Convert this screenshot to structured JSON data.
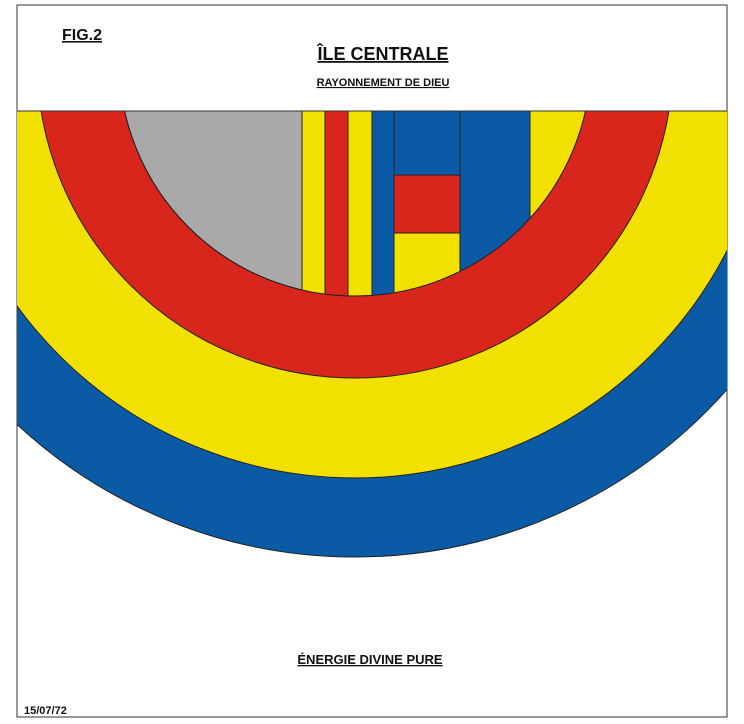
{
  "figure_label": "FIG.2",
  "title": "ÎLE CENTRALE",
  "subtitle": "RAYONNEMENT DE DIEU",
  "caption": "ÉNERGIE DIVINE PURE",
  "date": "15/07/72"
}
